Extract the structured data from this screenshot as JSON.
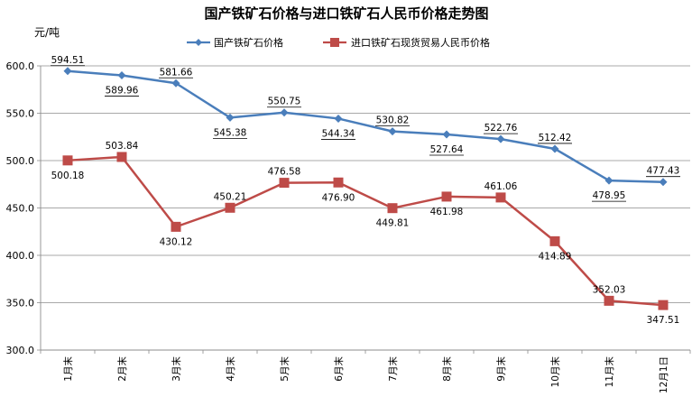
{
  "chart_data": {
    "type": "line",
    "title": "国产铁矿石价格与进口铁矿石人民币价格走势图",
    "ylabel": "元/吨",
    "xlabel": "",
    "ylim": [
      300,
      600
    ],
    "yticks": [
      "300.0",
      "350.0",
      "400.0",
      "450.0",
      "500.0",
      "550.0",
      "600.0"
    ],
    "categories": [
      "1月末",
      "2月末",
      "3月末",
      "4月末",
      "5月末",
      "6月末",
      "7月末",
      "8月末",
      "9月末",
      "10月末",
      "11月末",
      "12月1日"
    ],
    "legend_position": "top",
    "grid": "horizontal",
    "series": [
      {
        "name": "国产铁矿石价格",
        "color": "#4a7ebb",
        "marker": "diamond",
        "values": [
          594.51,
          589.96,
          581.66,
          545.38,
          550.75,
          544.34,
          530.82,
          527.64,
          522.76,
          512.42,
          478.95,
          477.43
        ],
        "labels": [
          "594.51",
          "589.96",
          "581.66",
          "545.38",
          "550.75",
          "544.34",
          "530.82",
          "527.64",
          "522.76",
          "512.42",
          "478.95",
          "477.43"
        ]
      },
      {
        "name": "进口铁矿石现货贸易人民币价格",
        "color": "#be4b48",
        "marker": "square",
        "values": [
          500.18,
          503.84,
          430.12,
          450.21,
          476.58,
          476.9,
          449.81,
          461.98,
          461.06,
          414.89,
          352.03,
          347.51
        ],
        "labels": [
          "500.18",
          "503.84",
          "430.12",
          "450.21",
          "476.58",
          "476.90",
          "449.81",
          "461.98",
          "461.06",
          "414.89",
          "352.03",
          "347.51"
        ]
      }
    ]
  }
}
